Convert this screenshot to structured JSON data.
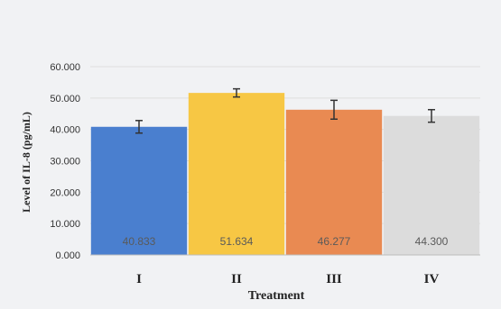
{
  "chart_data": {
    "type": "bar",
    "categories": [
      "I",
      "II",
      "III",
      "IV"
    ],
    "values": [
      40.833,
      51.634,
      46.277,
      44.3
    ],
    "value_labels": [
      "40.833",
      "51.634",
      "46.277",
      "44.300"
    ],
    "error": [
      2.0,
      1.3,
      3.0,
      2.0
    ],
    "xlabel": "Treatment",
    "ylabel": "Level of IL-8 (pg/mL)",
    "ylim": [
      0,
      60
    ],
    "yticks": [
      "0.000",
      "10.000",
      "20.000",
      "30.000",
      "40.000",
      "50.000",
      "60.000"
    ],
    "grid": true,
    "colors": [
      "#4a7fcf",
      "#f7c744",
      "#e98a52",
      "#dcdcdc"
    ]
  }
}
